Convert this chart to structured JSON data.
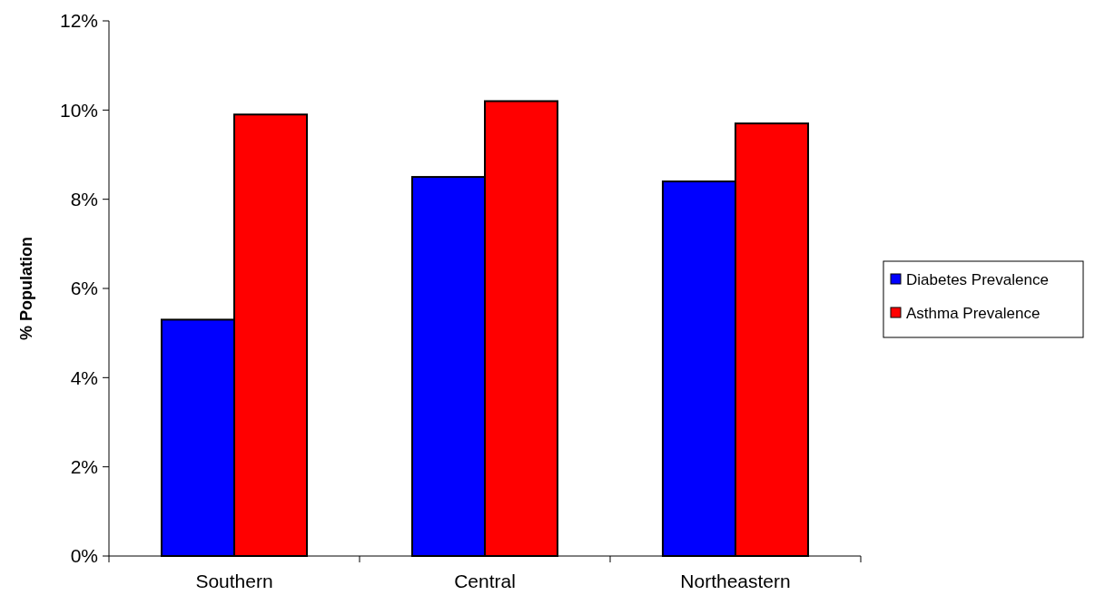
{
  "chart_data": {
    "type": "bar",
    "ylabel": "% Population",
    "categories": [
      "Southern",
      "Central",
      "Northeastern"
    ],
    "series": [
      {
        "name": "Diabetes Prevalence",
        "color": "#0000ff",
        "values": [
          5.3,
          8.5,
          8.4
        ]
      },
      {
        "name": "Asthma Prevalence",
        "color": "#ff0000",
        "values": [
          9.9,
          10.2,
          9.7
        ]
      }
    ],
    "ylim": [
      0,
      12
    ],
    "yticks": [
      {
        "value": 0,
        "label": "0%"
      },
      {
        "value": 2,
        "label": "2%"
      },
      {
        "value": 4,
        "label": "4%"
      },
      {
        "value": 6,
        "label": "6%"
      },
      {
        "value": 8,
        "label": "8%"
      },
      {
        "value": 10,
        "label": "10%"
      },
      {
        "value": 12,
        "label": "12%"
      }
    ],
    "grid": false,
    "legend": "right"
  }
}
